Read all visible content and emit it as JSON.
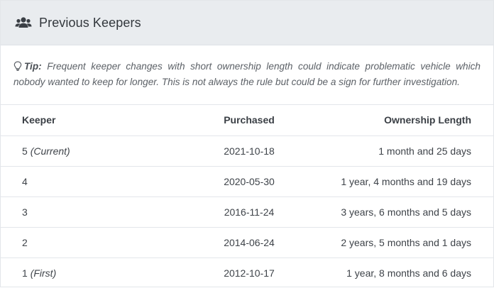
{
  "header": {
    "icon": "users-icon",
    "title": "Previous Keepers"
  },
  "tip": {
    "icon": "lightbulb-icon",
    "label": "Tip:",
    "text": "Frequent keeper changes with short ownership length could indicate problematic vehicle which nobody wanted to keep for longer. This is not always the rule but could be a sign for further investigation."
  },
  "table": {
    "columns": [
      "Keeper",
      "Purchased",
      "Ownership Length"
    ],
    "rows": [
      {
        "keeper": "5",
        "note": "(Current)",
        "purchased": "2021-10-18",
        "length": "1 month and 25 days"
      },
      {
        "keeper": "4",
        "note": "",
        "purchased": "2020-05-30",
        "length": "1 year, 4 months and 19 days"
      },
      {
        "keeper": "3",
        "note": "",
        "purchased": "2016-11-24",
        "length": "3 years, 6 months and 5 days"
      },
      {
        "keeper": "2",
        "note": "",
        "purchased": "2014-06-24",
        "length": "2 years, 5 months and 1 days"
      },
      {
        "keeper": "1",
        "note": "(First)",
        "purchased": "2012-10-17",
        "length": "1 year, 8 months and 6 days"
      }
    ]
  }
}
